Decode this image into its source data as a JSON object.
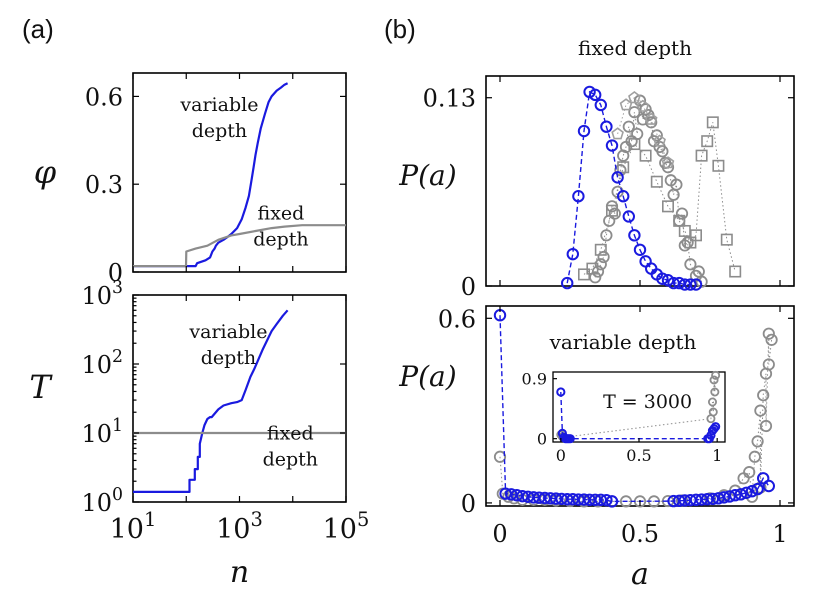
{
  "figure": {
    "panel_a_label": "(a)",
    "panel_b_label": "(b)"
  },
  "colors": {
    "blue": "#1a1adf",
    "gray": "#8c8c8c",
    "gray_light": "#a0a0a0"
  },
  "chart_data": [
    {
      "id": "phi_vs_n",
      "type": "line",
      "x_scale": "log",
      "ylabel": "φ",
      "xlim": [
        10,
        100000
      ],
      "ylim": [
        0,
        0.68
      ],
      "yticks": [
        0,
        0.3,
        0.6
      ],
      "ytick_labels": [
        "0",
        "0.3",
        "0.6"
      ],
      "annotations": [
        {
          "lines": [
            "variable",
            "depth"
          ],
          "at": [
            420,
            0.55
          ]
        },
        {
          "lines": [
            "fixed",
            "depth"
          ],
          "at": [
            6000,
            0.18
          ]
        }
      ],
      "series": [
        {
          "name": "variable depth",
          "color": "blue",
          "x": [
            10,
            60,
            150,
            160,
            230,
            280,
            310,
            340,
            360,
            400,
            500,
            600,
            700,
            900,
            1100,
            1300,
            1500,
            1700,
            1850,
            2000,
            2200,
            2500,
            3000,
            3500,
            4000,
            5000,
            6000,
            7000,
            8000
          ],
          "y": [
            0.02,
            0.02,
            0.02,
            0.03,
            0.04,
            0.05,
            0.07,
            0.08,
            0.09,
            0.1,
            0.11,
            0.12,
            0.13,
            0.15,
            0.18,
            0.22,
            0.26,
            0.32,
            0.36,
            0.4,
            0.44,
            0.49,
            0.54,
            0.58,
            0.6,
            0.62,
            0.63,
            0.64,
            0.645
          ]
        },
        {
          "name": "fixed depth",
          "color": "gray",
          "x": [
            10,
            99,
            100,
            150,
            250,
            400,
            700,
            1000,
            2000,
            4000,
            7000,
            15000,
            30000,
            60000,
            100000
          ],
          "y": [
            0.02,
            0.02,
            0.07,
            0.08,
            0.09,
            0.11,
            0.125,
            0.13,
            0.14,
            0.15,
            0.155,
            0.16,
            0.16,
            0.16,
            0.16
          ]
        }
      ]
    },
    {
      "id": "T_vs_n",
      "type": "line",
      "x_scale": "log",
      "y_scale": "log",
      "xlabel": "n",
      "ylabel": "T",
      "xlim": [
        10,
        100000
      ],
      "ylim": [
        1,
        1000
      ],
      "xticks": [
        10,
        1000,
        100000
      ],
      "xtick_labels": [
        "10^1",
        "10^3",
        "10^5"
      ],
      "yticks": [
        1,
        10,
        100,
        1000
      ],
      "ytick_labels": [
        "10^0",
        "10^1",
        "10^2",
        "10^3"
      ],
      "annotations": [
        {
          "lines": [
            "variable",
            "depth"
          ],
          "at": [
            620,
            240
          ]
        },
        {
          "lines": [
            "fixed",
            "depth"
          ],
          "at": [
            9000,
            8
          ]
        }
      ],
      "series": [
        {
          "name": "variable depth",
          "color": "blue",
          "x": [
            10,
            115,
            115,
            145,
            145,
            165,
            165,
            180,
            180,
            200,
            220,
            250,
            280,
            300,
            400,
            500,
            700,
            900,
            1100,
            1300,
            1600,
            1900,
            2200,
            2700,
            3300,
            4000,
            5000,
            6500,
            8000
          ],
          "y": [
            1.4,
            1.4,
            2.1,
            2.1,
            3,
            3,
            4.5,
            4.5,
            7,
            10,
            13,
            16,
            17,
            17,
            22,
            25,
            27,
            28,
            30,
            42,
            65,
            85,
            110,
            160,
            220,
            300,
            380,
            500,
            600
          ]
        },
        {
          "name": "fixed depth",
          "color": "gray",
          "x": [
            10,
            100000
          ],
          "y": [
            10,
            10
          ]
        }
      ]
    },
    {
      "id": "Pa_fixed",
      "type": "scatter",
      "title": "fixed depth",
      "xlabel": "",
      "ylabel": "P(a)",
      "xlim": [
        -0.05,
        1.05
      ],
      "ylim": [
        0,
        0.145
      ],
      "yticks": [
        0,
        0.13
      ],
      "ytick_labels": [
        "0",
        "0.13"
      ],
      "series": [
        {
          "name": "blue",
          "color": "blue",
          "marker": "circle",
          "line": "dashed",
          "x": [
            0.24,
            0.26,
            0.28,
            0.3,
            0.32,
            0.34,
            0.36,
            0.38,
            0.4,
            0.42,
            0.44,
            0.46,
            0.48,
            0.5,
            0.52,
            0.54,
            0.56,
            0.58,
            0.6,
            0.62,
            0.64,
            0.66,
            0.68,
            0.7
          ],
          "y": [
            0.002,
            0.022,
            0.062,
            0.107,
            0.134,
            0.132,
            0.125,
            0.11,
            0.097,
            0.075,
            0.062,
            0.048,
            0.035,
            0.025,
            0.017,
            0.012,
            0.008,
            0.005,
            0.004,
            0.002,
            0.002,
            0.001,
            0.001,
            0.001
          ]
        },
        {
          "name": "gray circles",
          "color": "gray",
          "marker": "circle",
          "line": "dotted",
          "x": [
            0.34,
            0.36,
            0.38,
            0.4,
            0.42,
            0.44,
            0.46,
            0.48,
            0.5,
            0.52,
            0.54,
            0.56,
            0.58,
            0.6,
            0.62,
            0.64,
            0.66,
            0.68,
            0.7,
            0.72,
            0.35,
            0.39,
            0.43,
            0.47,
            0.51,
            0.55,
            0.59,
            0.63,
            0.67,
            0.71,
            0.37,
            0.41,
            0.45,
            0.49,
            0.53,
            0.57,
            0.61,
            0.65
          ],
          "y": [
            0.006,
            0.015,
            0.035,
            0.055,
            0.065,
            0.09,
            0.11,
            0.12,
            0.128,
            0.122,
            0.113,
            0.104,
            0.093,
            0.082,
            0.063,
            0.045,
            0.028,
            0.015,
            0.007,
            0.003,
            0.01,
            0.045,
            0.08,
            0.1,
            0.115,
            0.1,
            0.085,
            0.07,
            0.03,
            0.01,
            0.02,
            0.05,
            0.096,
            0.105,
            0.118,
            0.096,
            0.073,
            0.05
          ]
        },
        {
          "name": "gray squares",
          "color": "gray",
          "marker": "square",
          "line": "dotted",
          "x": [
            0.3,
            0.33,
            0.36,
            0.4,
            0.44,
            0.48,
            0.52,
            0.56,
            0.6,
            0.64,
            0.66,
            0.68,
            0.7,
            0.72,
            0.74,
            0.76,
            0.78,
            0.81,
            0.84
          ],
          "y": [
            0.008,
            0.012,
            0.025,
            0.052,
            0.082,
            0.098,
            0.09,
            0.072,
            0.055,
            0.045,
            0.038,
            0.03,
            0.035,
            0.09,
            0.1,
            0.113,
            0.083,
            0.032,
            0.01
          ]
        },
        {
          "name": "gray pentagons",
          "color": "gray_light",
          "marker": "pentagon",
          "line": "dotted",
          "x": [
            0.42,
            0.45,
            0.48,
            0.51,
            0.54,
            0.57,
            0.6
          ],
          "y": [
            0.105,
            0.125,
            0.13,
            0.124,
            0.115,
            0.1,
            0.085
          ]
        }
      ]
    },
    {
      "id": "Pa_variable",
      "type": "scatter",
      "title": "variable depth",
      "xlabel": "a",
      "ylabel": "P(a)",
      "xlim": [
        -0.05,
        1.05
      ],
      "ylim": [
        -0.01,
        0.64
      ],
      "xticks": [
        0,
        0.5,
        1
      ],
      "xtick_labels": [
        "0",
        "0.5",
        "1"
      ],
      "yticks": [
        0,
        0.6
      ],
      "ytick_labels": [
        "0",
        "0.6"
      ],
      "series": [
        {
          "name": "blue",
          "color": "blue",
          "marker": "circle",
          "line": "dashed",
          "x": [
            0.0,
            0.02,
            0.04,
            0.06,
            0.08,
            0.1,
            0.12,
            0.14,
            0.16,
            0.18,
            0.2,
            0.22,
            0.24,
            0.26,
            0.28,
            0.3,
            0.32,
            0.34,
            0.36,
            0.38,
            0.4,
            0.62,
            0.64,
            0.66,
            0.68,
            0.7,
            0.72,
            0.74,
            0.76,
            0.78,
            0.8,
            0.82,
            0.84,
            0.86,
            0.88,
            0.9,
            0.92,
            0.94,
            0.96
          ],
          "y": [
            0.61,
            0.03,
            0.028,
            0.025,
            0.022,
            0.02,
            0.018,
            0.017,
            0.016,
            0.015,
            0.014,
            0.013,
            0.012,
            0.012,
            0.011,
            0.011,
            0.01,
            0.01,
            0.01,
            0.009,
            0.005,
            0.006,
            0.007,
            0.008,
            0.009,
            0.01,
            0.011,
            0.012,
            0.013,
            0.015,
            0.018,
            0.021,
            0.025,
            0.028,
            0.033,
            0.038,
            0.045,
            0.08,
            0.055
          ]
        },
        {
          "name": "gray",
          "color": "gray",
          "marker": "circle",
          "line": "dotted",
          "x": [
            0.0,
            0.01,
            0.03,
            0.05,
            0.08,
            0.12,
            0.16,
            0.2,
            0.25,
            0.3,
            0.35,
            0.4,
            0.45,
            0.5,
            0.55,
            0.6,
            0.65,
            0.7,
            0.75,
            0.8,
            0.84,
            0.87,
            0.89,
            0.91,
            0.92,
            0.93,
            0.94,
            0.95,
            0.96,
            0.97,
            0.95,
            0.96,
            0.93,
            0.9
          ],
          "y": [
            0.15,
            0.03,
            0.02,
            0.015,
            0.01,
            0.01,
            0.01,
            0.008,
            0.006,
            0.005,
            0.005,
            0.005,
            0.005,
            0.005,
            0.005,
            0.006,
            0.008,
            0.01,
            0.015,
            0.025,
            0.04,
            0.08,
            0.1,
            0.15,
            0.2,
            0.3,
            0.35,
            0.42,
            0.55,
            0.53,
            0.25,
            0.45,
            0.05,
            0.02
          ]
        }
      ],
      "inset": {
        "label": "T = 3000",
        "xlim": [
          -0.05,
          1.05
        ],
        "ylim": [
          -0.05,
          1.0
        ],
        "xticks": [
          0,
          0.5,
          1
        ],
        "xtick_labels": [
          "0",
          "0.5",
          "1"
        ],
        "yticks": [
          0,
          0.9
        ],
        "ytick_labels": [
          "0",
          "0.9"
        ],
        "series": [
          {
            "name": "blue",
            "color": "blue",
            "marker": "circle",
            "line": "dashed",
            "x": [
              0.0,
              0.01,
              0.02,
              0.03,
              0.04,
              0.05,
              0.06,
              0.94,
              0.95,
              0.96,
              0.97,
              0.98,
              0.99
            ],
            "y": [
              0.7,
              0.08,
              0.02,
              0.0,
              0.0,
              0.0,
              0.0,
              0.0,
              0.0,
              0.05,
              0.12,
              0.15,
              0.18
            ]
          },
          {
            "name": "gray",
            "color": "gray",
            "marker": "circle",
            "line": "dotted",
            "x": [
              0.0,
              0.01,
              0.02,
              0.96,
              0.97,
              0.98,
              0.99,
              0.975,
              0.985
            ],
            "y": [
              0.06,
              0.03,
              0.02,
              0.3,
              0.55,
              0.88,
              0.95,
              0.4,
              0.7
            ]
          }
        ]
      }
    }
  ]
}
